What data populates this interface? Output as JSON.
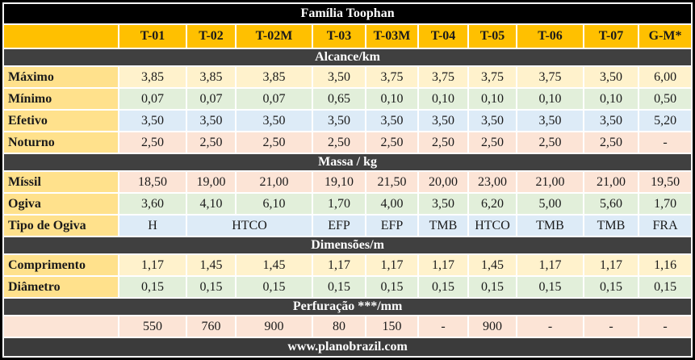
{
  "title": "Família Toophan",
  "footer": "www.planobrazil.com",
  "columns": [
    "T-01",
    "T-02",
    "T-02M",
    "T-03",
    "T-03M",
    "T-04",
    "T-05",
    "T-06",
    "T-07",
    "G-M*"
  ],
  "sections": [
    {
      "header": "Alcance/km",
      "rows": [
        {
          "label": "Máximo",
          "tint": "yellow",
          "cells": [
            "3,85",
            "3,85",
            "3,85",
            "3,50",
            "3,75",
            "3,75",
            "3,75",
            "3,75",
            "3,50",
            "6,00"
          ]
        },
        {
          "label": "Mínimo",
          "tint": "green",
          "cells": [
            "0,07",
            "0,07",
            "0,07",
            "0,65",
            "0,10",
            "0,10",
            "0,10",
            "0,10",
            "0,10",
            "0,50"
          ]
        },
        {
          "label": "Efetivo",
          "tint": "blue",
          "cells": [
            "3,50",
            "3,50",
            "3,50",
            "3,50",
            "3,50",
            "3,50",
            "3,50",
            "3,50",
            "3,50",
            "5,20"
          ]
        },
        {
          "label": "Noturno",
          "tint": "peach",
          "cells": [
            "2,50",
            "2,50",
            "2,50",
            "2,50",
            "2,50",
            "2,50",
            "2,50",
            "2,50",
            "2,50",
            "-"
          ]
        }
      ]
    },
    {
      "header": "Massa / kg",
      "rows": [
        {
          "label": "Míssil",
          "tint": "peach",
          "cells": [
            "18,50",
            "19,00",
            "21,00",
            "19,10",
            "21,50",
            "20,00",
            "23,00",
            "21,00",
            "21,00",
            "19,50"
          ]
        },
        {
          "label": "Ogiva",
          "tint": "green",
          "cells": [
            "3,60",
            "4,10",
            "6,10",
            "1,70",
            "4,00",
            "3,50",
            "6,20",
            "5,00",
            "5,60",
            "1,70"
          ]
        },
        {
          "label": "Tipo de Ogiva",
          "tint": "blue",
          "cells": [
            {
              "text": "H"
            },
            {
              "text": "HTCO",
              "span": 2
            },
            {
              "text": "EFP"
            },
            {
              "text": "EFP"
            },
            {
              "text": "TMB"
            },
            {
              "text": "HTCO"
            },
            {
              "text": "TMB"
            },
            {
              "text": "TMB"
            },
            {
              "text": "FRA"
            }
          ]
        }
      ]
    },
    {
      "header": "Dimensões/m",
      "rows": [
        {
          "label": "Comprimento",
          "tint": "yellow",
          "cells": [
            "1,17",
            "1,45",
            "1,45",
            "1,17",
            "1,17",
            "1,17",
            "1,45",
            "1,17",
            "1,17",
            "1,16"
          ]
        },
        {
          "label": "Diâmetro",
          "tint": "green",
          "cells": [
            "0,15",
            "0,15",
            "0,15",
            "0,15",
            "0,15",
            "0,15",
            "0,15",
            "0,15",
            "0,15",
            "0,15"
          ]
        }
      ]
    },
    {
      "header": "Perfuração ***/mm",
      "rows": [
        {
          "label": "",
          "label_tint": "peach",
          "tint": "peach",
          "cells": [
            "550",
            "760",
            "900",
            "80",
            "150",
            "-",
            "900",
            "-",
            "-",
            "-"
          ]
        }
      ]
    }
  ],
  "colors": {
    "title_bg": "#000000",
    "column_header_bg": "#FFC000",
    "section_bar_bg": "#404040",
    "row_label_bg": "#FFE18C",
    "tint_yellow": "#FFF2CC",
    "tint_green": "#E2EFDA",
    "tint_blue": "#DDEBF7",
    "tint_peach": "#FCE4D6",
    "footer_bg": "#3B3B3B"
  }
}
